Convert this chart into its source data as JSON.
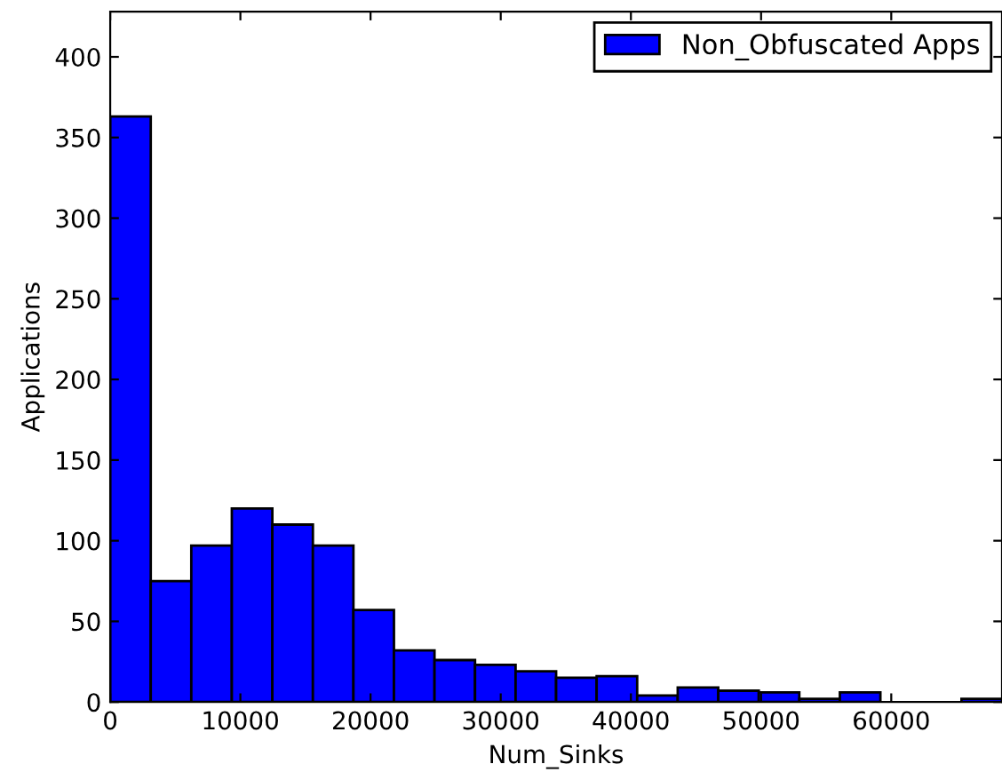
{
  "chart_data": {
    "type": "histogram",
    "xlabel": "Num_Sinks",
    "ylabel": "Applications",
    "bins": [
      0,
      3114,
      6228,
      9342,
      12456,
      15570,
      18684,
      21798,
      24912,
      28026,
      31140,
      34254,
      37368,
      40482,
      43596,
      46710,
      49824,
      52938,
      56052,
      59166,
      62280,
      65394,
      68508
    ],
    "series": [
      {
        "name": "Non_Obfuscated Apps",
        "color": "#0000ff",
        "values": [
          363,
          75,
          97,
          120,
          110,
          97,
          57,
          32,
          26,
          23,
          19,
          15,
          16,
          4,
          9,
          7,
          6,
          2,
          6,
          0,
          0,
          2
        ]
      }
    ],
    "xlim": [
      0,
      68508
    ],
    "xticks": [
      0,
      10000,
      20000,
      30000,
      40000,
      50000,
      60000
    ],
    "ylim": [
      0,
      428
    ],
    "yticks": [
      0,
      50,
      100,
      150,
      200,
      250,
      300,
      350,
      400
    ],
    "legend": "upper right",
    "grid": false
  }
}
